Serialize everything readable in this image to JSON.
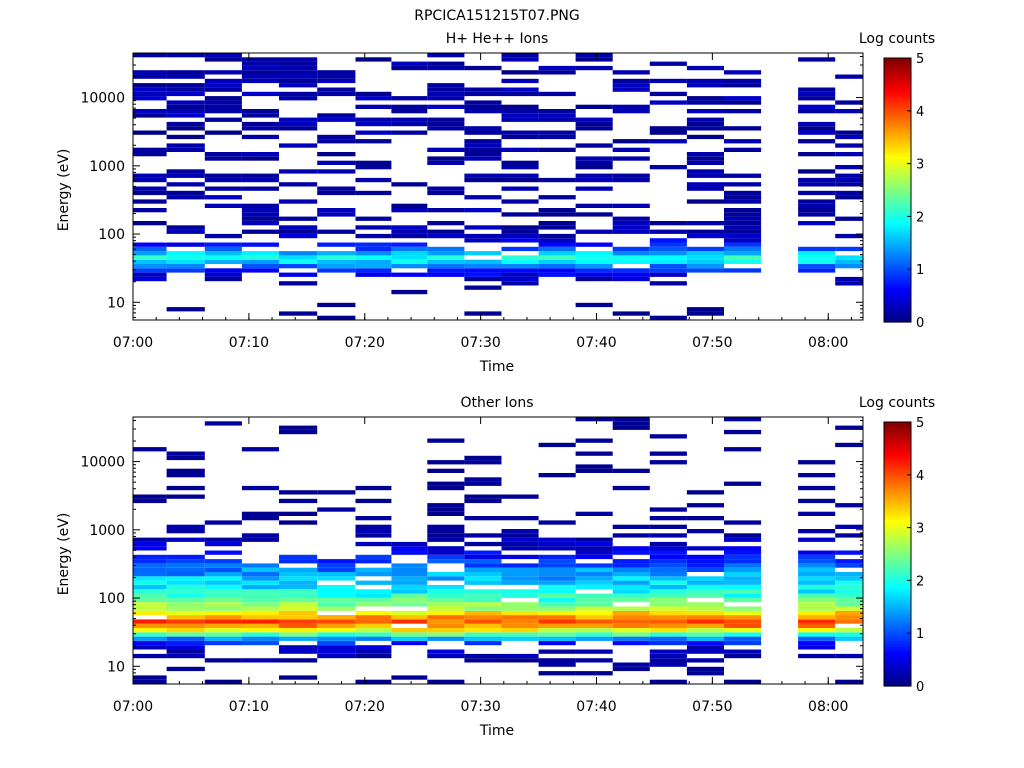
{
  "figure": {
    "filename_title": "RPCICA151215T07.PNG"
  },
  "colors": {
    "cmap": [
      "#00007f",
      "#0000ff",
      "#007fff",
      "#00ffff",
      "#7fff7f",
      "#ffff00",
      "#ff7f00",
      "#ff0000",
      "#7f0000"
    ]
  },
  "chart_data": [
    {
      "type": "heatmap",
      "title": "H+ He++ Ions",
      "xlabel": "Time",
      "ylabel": "Energy (eV)",
      "x_ticks": [
        "07:00",
        "07:10",
        "07:20",
        "07:30",
        "07:40",
        "07:50",
        "08:00"
      ],
      "y_ticks": [
        "10",
        "100",
        "1000",
        "10000"
      ],
      "y_scale": "log",
      "ylim": [
        5.5,
        45000
      ],
      "xlim_minutes": [
        0,
        63
      ],
      "colorbar": {
        "label": "Log counts",
        "range": [
          0,
          5
        ],
        "ticks": [
          "0",
          "1",
          "2",
          "3",
          "4",
          "5"
        ]
      },
      "time_bins_minutes": [
        1.2,
        4.6,
        7.8,
        11.0,
        14.2,
        17.6,
        20.8,
        23.8,
        27.0,
        30.2,
        33.4,
        36.6,
        39.8,
        43.0,
        46.2,
        49.4,
        52.6,
        55.8,
        59.0,
        62.2
      ],
      "empty_bins": [
        17
      ],
      "profile": [
        {
          "e": 8,
          "v": 0.2
        },
        {
          "e": 13,
          "v": 0.1
        },
        {
          "e": 20,
          "v": 0.3
        },
        {
          "e": 30,
          "v": 0.9
        },
        {
          "e": 38,
          "v": 1.6
        },
        {
          "e": 45,
          "v": 1.9
        },
        {
          "e": 55,
          "v": 1.4
        },
        {
          "e": 70,
          "v": 0.8
        },
        {
          "e": 100,
          "v": 0.4
        },
        {
          "e": 1000,
          "v": 0.3
        },
        {
          "e": 10000,
          "v": 0.4
        },
        {
          "e": 40000,
          "v": 0.3
        }
      ]
    },
    {
      "type": "heatmap",
      "title": "Other Ions",
      "xlabel": "Time",
      "ylabel": "Energy (eV)",
      "x_ticks": [
        "07:00",
        "07:10",
        "07:20",
        "07:30",
        "07:40",
        "07:50",
        "08:00"
      ],
      "y_ticks": [
        "10",
        "100",
        "1000",
        "10000"
      ],
      "y_scale": "log",
      "ylim": [
        5.5,
        45000
      ],
      "xlim_minutes": [
        0,
        63
      ],
      "colorbar": {
        "label": "Log counts",
        "range": [
          0,
          5
        ],
        "ticks": [
          "0",
          "1",
          "2",
          "3",
          "4",
          "5"
        ]
      },
      "time_bins_minutes": [
        1.2,
        4.6,
        7.8,
        11.0,
        14.2,
        17.6,
        20.8,
        23.8,
        27.0,
        30.2,
        33.4,
        36.6,
        39.8,
        43.0,
        46.2,
        49.4,
        52.6,
        55.8,
        59.0,
        62.2
      ],
      "empty_bins": [
        17
      ],
      "profile": [
        {
          "e": 8,
          "v": 0.2
        },
        {
          "e": 13,
          "v": 0.3
        },
        {
          "e": 20,
          "v": 0.6
        },
        {
          "e": 26,
          "v": 1.4
        },
        {
          "e": 32,
          "v": 2.8
        },
        {
          "e": 38,
          "v": 3.6
        },
        {
          "e": 45,
          "v": 3.9
        },
        {
          "e": 55,
          "v": 3.5
        },
        {
          "e": 70,
          "v": 2.8
        },
        {
          "e": 100,
          "v": 2.1
        },
        {
          "e": 180,
          "v": 1.6
        },
        {
          "e": 300,
          "v": 1.1
        },
        {
          "e": 500,
          "v": 0.6
        },
        {
          "e": 900,
          "v": 0.3
        },
        {
          "e": 3000,
          "v": 0.2
        },
        {
          "e": 40000,
          "v": 0.2
        }
      ]
    }
  ]
}
